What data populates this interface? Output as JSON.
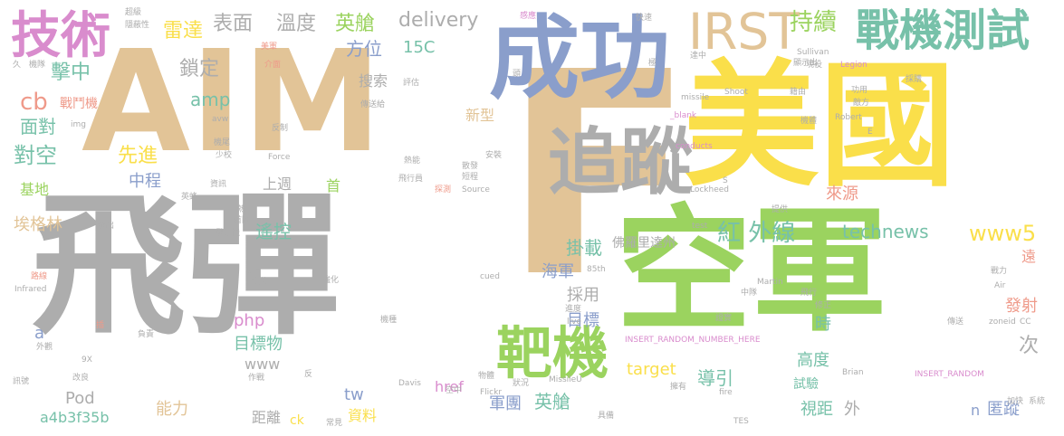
{
  "words": [
    {
      "text": "飛彈",
      "size": 170,
      "color": "#adadad"
    },
    {
      "text": "AIM",
      "size": 150,
      "color": "#e2c497"
    },
    {
      "text": "F",
      "size": 300,
      "color": "#e2c497"
    },
    {
      "text": "美國",
      "size": 150,
      "color": "#fadf4a"
    },
    {
      "text": "空軍",
      "size": 150,
      "color": "#9bd35f"
    },
    {
      "text": "成功",
      "size": 100,
      "color": "#8a9ecb"
    },
    {
      "text": "追蹤",
      "size": 80,
      "color": "#adadad"
    },
    {
      "text": "技術",
      "size": 55,
      "color": "#d98ccd"
    },
    {
      "text": "戰機測試",
      "size": 48,
      "color": "#77c1a9"
    },
    {
      "text": "IRST",
      "size": 55,
      "color": "#e2c497"
    },
    {
      "text": "靶機",
      "size": 62,
      "color": "#9bd35f"
    },
    {
      "text": "表面",
      "size": 22,
      "color": "#adadad"
    },
    {
      "text": "溫度",
      "size": 22,
      "color": "#adadad"
    },
    {
      "text": "英艙",
      "size": 22,
      "color": "#9bd35f"
    },
    {
      "text": "delivery",
      "size": 22,
      "color": "#adadad"
    },
    {
      "text": "持續",
      "size": 26,
      "color": "#9bd35f"
    },
    {
      "text": "雷達",
      "size": 22,
      "color": "#fadf4a"
    },
    {
      "text": "擊中",
      "size": 22,
      "color": "#77c1a9"
    },
    {
      "text": "鎖定",
      "size": 22,
      "color": "#adadad"
    },
    {
      "text": "方位",
      "size": 20,
      "color": "#8a9ecb"
    },
    {
      "text": "15C",
      "size": 18,
      "color": "#77c1a9"
    },
    {
      "text": "amp",
      "size": 20,
      "color": "#77c1a9"
    },
    {
      "text": "cb",
      "size": 26,
      "color": "#ef9a8a"
    },
    {
      "text": "面對",
      "size": 20,
      "color": "#77c1a9"
    },
    {
      "text": "戰鬥機",
      "size": 14,
      "color": "#ef9a8a"
    },
    {
      "text": "對空",
      "size": 24,
      "color": "#77c1a9"
    },
    {
      "text": "先進",
      "size": 22,
      "color": "#fadf4a"
    },
    {
      "text": "搜索",
      "size": 16,
      "color": "#adadad"
    },
    {
      "text": "新型",
      "size": 16,
      "color": "#e2c497"
    },
    {
      "text": "中程",
      "size": 18,
      "color": "#8a9ecb"
    },
    {
      "text": "上週",
      "size": 16,
      "color": "#adadad"
    },
    {
      "text": "首",
      "size": 16,
      "color": "#9bd35f"
    },
    {
      "text": "基地",
      "size": 16,
      "color": "#9bd35f"
    },
    {
      "text": "埃格林",
      "size": 18,
      "color": "#e2c497"
    },
    {
      "text": "遙控",
      "size": 20,
      "color": "#77c1a9"
    },
    {
      "text": "紅 外線",
      "size": 26,
      "color": "#77c1a9"
    },
    {
      "text": "technews",
      "size": 20,
      "color": "#77c1a9"
    },
    {
      "text": "來源",
      "size": 18,
      "color": "#ef9a8a"
    },
    {
      "text": "www5",
      "size": 24,
      "color": "#fadf4a"
    },
    {
      "text": "掛載",
      "size": 20,
      "color": "#77c1a9"
    },
    {
      "text": "佛羅里達州",
      "size": 14,
      "color": "#adadad"
    },
    {
      "text": "海軍",
      "size": 18,
      "color": "#8a9ecb"
    },
    {
      "text": "採用",
      "size": 18,
      "color": "#adadad"
    },
    {
      "text": "php",
      "size": 18,
      "color": "#d98ccd"
    },
    {
      "text": "目標物",
      "size": 18,
      "color": "#77c1a9"
    },
    {
      "text": "目標",
      "size": 18,
      "color": "#8a9ecb"
    },
    {
      "text": "www",
      "size": 16,
      "color": "#adadad"
    },
    {
      "text": "a",
      "size": 18,
      "color": "#8a9ecb"
    },
    {
      "text": "target",
      "size": 18,
      "color": "#fadf4a"
    },
    {
      "text": "導引",
      "size": 20,
      "color": "#77c1a9"
    },
    {
      "text": "高度",
      "size": 18,
      "color": "#77c1a9"
    },
    {
      "text": "時",
      "size": 18,
      "color": "#77c1a9"
    },
    {
      "text": "發射",
      "size": 18,
      "color": "#ef9a8a"
    },
    {
      "text": "次",
      "size": 22,
      "color": "#adadad"
    },
    {
      "text": "遠",
      "size": 16,
      "color": "#ef9a8a"
    },
    {
      "text": "試驗",
      "size": 14,
      "color": "#77c1a9"
    },
    {
      "text": "Pod",
      "size": 18,
      "color": "#adadad"
    },
    {
      "text": "能力",
      "size": 18,
      "color": "#e2c497"
    },
    {
      "text": "a4b3f35b",
      "size": 16,
      "color": "#77c1a9"
    },
    {
      "text": "tw",
      "size": 18,
      "color": "#8a9ecb"
    },
    {
      "text": "href",
      "size": 16,
      "color": "#d98ccd"
    },
    {
      "text": "軍團",
      "size": 18,
      "color": "#8a9ecb"
    },
    {
      "text": "英艙",
      "size": 20,
      "color": "#77c1a9"
    },
    {
      "text": "視距",
      "size": 18,
      "color": "#77c1a9"
    },
    {
      "text": "外",
      "size": 18,
      "color": "#adadad"
    },
    {
      "text": "匿蹤",
      "size": 18,
      "color": "#8a9ecb"
    },
    {
      "text": "n",
      "size": 16,
      "color": "#8a9ecb"
    },
    {
      "text": "距離",
      "size": 16,
      "color": "#adadad"
    },
    {
      "text": "ck",
      "size": 14,
      "color": "#fadf4a"
    },
    {
      "text": "資料",
      "size": 16,
      "color": "#fadf4a"
    },
    {
      "text": "超級",
      "size": 9,
      "color": "#adadad"
    },
    {
      "text": "隱蔽性",
      "size": 9,
      "color": "#adadad"
    },
    {
      "text": "img",
      "size": 9,
      "color": "#adadad"
    },
    {
      "text": "美軍",
      "size": 9,
      "color": "#ef9a8a"
    },
    {
      "text": "介面",
      "size": 9,
      "color": "#ef9a8a"
    },
    {
      "text": "評估",
      "size": 9,
      "color": "#adadad"
    },
    {
      "text": "傳送給",
      "size": 9,
      "color": "#adadad"
    },
    {
      "text": "反制",
      "size": 9,
      "color": "#adadad"
    },
    {
      "text": "avw",
      "size": 9,
      "color": "#adadad"
    },
    {
      "text": "機尾",
      "size": 9,
      "color": "#adadad"
    },
    {
      "text": "少校",
      "size": 9,
      "color": "#adadad"
    },
    {
      "text": "Force",
      "size": 9,
      "color": "#adadad"
    },
    {
      "text": "熱能",
      "size": 9,
      "color": "#adadad"
    },
    {
      "text": "飛行員",
      "size": 9,
      "color": "#adadad"
    },
    {
      "text": "散發",
      "size": 9,
      "color": "#adadad"
    },
    {
      "text": "短程",
      "size": 9,
      "color": "#adadad"
    },
    {
      "text": "安裝",
      "size": 9,
      "color": "#adadad"
    },
    {
      "text": "Source",
      "size": 9,
      "color": "#adadad"
    },
    {
      "text": "探測",
      "size": 9,
      "color": "#ef9a8a"
    },
    {
      "text": "資訊",
      "size": 9,
      "color": "#adadad"
    },
    {
      "text": "英蜂",
      "size": 9,
      "color": "#adadad"
    },
    {
      "text": "熱",
      "size": 9,
      "color": "#adadad"
    },
    {
      "text": "首圖",
      "size": 9,
      "color": "#adadad"
    },
    {
      "text": "發出",
      "size": 9,
      "color": "#adadad"
    },
    {
      "text": "發動機",
      "size": 9,
      "color": "#adadad"
    },
    {
      "text": "路線",
      "size": 9,
      "color": "#ef9a8a"
    },
    {
      "text": "Infrared",
      "size": 9,
      "color": "#adadad"
    },
    {
      "text": "src",
      "size": 9,
      "color": "#adadad"
    },
    {
      "text": "定位",
      "size": 9,
      "color": "#adadad"
    },
    {
      "text": "強化",
      "size": 9,
      "color": "#adadad"
    },
    {
      "text": "cued",
      "size": 9,
      "color": "#adadad"
    },
    {
      "text": "機種",
      "size": 9,
      "color": "#adadad"
    },
    {
      "text": "負責",
      "size": 9,
      "color": "#adadad"
    },
    {
      "text": "插",
      "size": 9,
      "color": "#ef9a8a"
    },
    {
      "text": "9X",
      "size": 9,
      "color": "#adadad"
    },
    {
      "text": "外觀",
      "size": 9,
      "color": "#adadad"
    },
    {
      "text": "改良",
      "size": 9,
      "color": "#adadad"
    },
    {
      "text": "作戰",
      "size": 9,
      "color": "#adadad"
    },
    {
      "text": "反",
      "size": 9,
      "color": "#adadad"
    },
    {
      "text": "物體",
      "size": 9,
      "color": "#adadad"
    },
    {
      "text": "訊號",
      "size": 9,
      "color": "#adadad"
    },
    {
      "text": "常見",
      "size": 9,
      "color": "#adadad"
    },
    {
      "text": "Davis",
      "size": 9,
      "color": "#adadad"
    },
    {
      "text": "空中",
      "size": 9,
      "color": "#adadad"
    },
    {
      "text": "Flickr",
      "size": 9,
      "color": "#adadad"
    },
    {
      "text": "狀況",
      "size": 9,
      "color": "#adadad"
    },
    {
      "text": "MissileU",
      "size": 9,
      "color": "#adadad"
    },
    {
      "text": "具備",
      "size": 9,
      "color": "#adadad"
    },
    {
      "text": "感應",
      "size": 9,
      "color": "#d98ccd"
    },
    {
      "text": "快速",
      "size": 9,
      "color": "#adadad"
    },
    {
      "text": "頭",
      "size": 9,
      "color": "#adadad"
    },
    {
      "text": "極",
      "size": 9,
      "color": "#adadad"
    },
    {
      "text": "Sullivan",
      "size": 9,
      "color": "#adadad"
    },
    {
      "text": "顯示出",
      "size": 9,
      "color": "#adadad"
    },
    {
      "text": "現役",
      "size": 9,
      "color": "#adadad"
    },
    {
      "text": "Legion",
      "size": 9,
      "color": "#d98ccd"
    },
    {
      "text": "達中",
      "size": 9,
      "color": "#adadad"
    },
    {
      "text": "missile",
      "size": 9,
      "color": "#adadad"
    },
    {
      "text": "Shoot",
      "size": 9,
      "color": "#adadad"
    },
    {
      "text": "籍由",
      "size": 9,
      "color": "#adadad"
    },
    {
      "text": "功用",
      "size": 9,
      "color": "#adadad"
    },
    {
      "text": "敵方",
      "size": 9,
      "color": "#adadad"
    },
    {
      "text": "採購",
      "size": 9,
      "color": "#adadad"
    },
    {
      "text": "_blank",
      "size": 9,
      "color": "#d98ccd"
    },
    {
      "text": "Robert",
      "size": 9,
      "color": "#adadad"
    },
    {
      "text": "機體",
      "size": 9,
      "color": "#adadad"
    },
    {
      "text": "E",
      "size": 9,
      "color": "#adadad"
    },
    {
      "text": "conducts",
      "size": 9,
      "color": "#d98ccd"
    },
    {
      "text": "S",
      "size": 9,
      "color": "#adadad"
    },
    {
      "text": "Lockheed",
      "size": 9,
      "color": "#adadad"
    },
    {
      "text": "提供",
      "size": 9,
      "color": "#adadad"
    },
    {
      "text": "test",
      "size": 9,
      "color": "#adadad"
    },
    {
      "text": "Martin",
      "size": 9,
      "color": "#adadad"
    },
    {
      "text": "中隊",
      "size": 9,
      "color": "#adadad"
    },
    {
      "text": "飛行",
      "size": 9,
      "color": "#adadad"
    },
    {
      "text": "修正",
      "size": 9,
      "color": "#adadad"
    },
    {
      "text": "Air",
      "size": 9,
      "color": "#adadad"
    },
    {
      "text": "戰力",
      "size": 9,
      "color": "#adadad"
    },
    {
      "text": "85th",
      "size": 9,
      "color": "#adadad"
    },
    {
      "text": "進度",
      "size": 9,
      "color": "#adadad"
    },
    {
      "text": "live",
      "size": 9,
      "color": "#adadad"
    },
    {
      "text": "證實",
      "size": 9,
      "color": "#adadad"
    },
    {
      "text": "傳送",
      "size": 9,
      "color": "#adadad"
    },
    {
      "text": "zoneid",
      "size": 9,
      "color": "#adadad"
    },
    {
      "text": "CC",
      "size": 9,
      "color": "#adadad"
    },
    {
      "text": "INSERT_RANDOM_NUMBER_HERE",
      "size": 9,
      "color": "#d98ccd"
    },
    {
      "text": "INSERT_RANDOM",
      "size": 9,
      "color": "#d98ccd"
    },
    {
      "text": "Brian",
      "size": 9,
      "color": "#adadad"
    },
    {
      "text": "擁有",
      "size": 9,
      "color": "#adadad"
    },
    {
      "text": "fire",
      "size": 9,
      "color": "#adadad"
    },
    {
      "text": "加快",
      "size": 9,
      "color": "#adadad"
    },
    {
      "text": "系統",
      "size": 9,
      "color": "#adadad"
    },
    {
      "text": "TES",
      "size": 9,
      "color": "#adadad"
    },
    {
      "text": "久",
      "size": 9,
      "color": "#adadad"
    },
    {
      "text": "機隊",
      "size": 9,
      "color": "#adadad"
    }
  ]
}
